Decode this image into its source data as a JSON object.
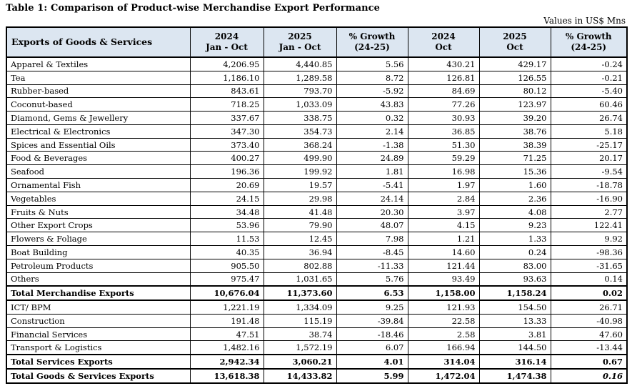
{
  "title": "Table 1: Comparison of Product-wise Merchandise Export Performance",
  "units_note": "Values in US$ Mns",
  "colors": {
    "header_bg": "#dce6f1",
    "border": "#000000",
    "background": "#ffffff"
  },
  "table": {
    "header": {
      "col0": "Exports of Goods & Services",
      "cols": [
        {
          "line1": "2024",
          "line2": "Jan - Oct"
        },
        {
          "line1": "2025",
          "line2": "Jan - Oct"
        },
        {
          "line1": "% Growth",
          "line2": "(24-25)"
        },
        {
          "line1": "2024",
          "line2": "Oct"
        },
        {
          "line1": "2025",
          "line2": "Oct"
        },
        {
          "line1": "% Growth",
          "line2": "(24-25)"
        }
      ]
    },
    "rows": [
      {
        "label": "Apparel & Textiles",
        "values": [
          "4,206.95",
          "4,440.85",
          "5.56",
          "430.21",
          "429.17",
          "-0.24"
        ],
        "bold": false
      },
      {
        "label": "Tea",
        "values": [
          "1,186.10",
          "1,289.58",
          "8.72",
          "126.81",
          "126.55",
          "-0.21"
        ],
        "bold": false
      },
      {
        "label": "Rubber-based",
        "values": [
          "843.61",
          "793.70",
          "-5.92",
          "84.69",
          "80.12",
          "-5.40"
        ],
        "bold": false
      },
      {
        "label": "Coconut-based",
        "values": [
          "718.25",
          "1,033.09",
          "43.83",
          "77.26",
          "123.97",
          "60.46"
        ],
        "bold": false
      },
      {
        "label": "Diamond, Gems & Jewellery",
        "values": [
          "337.67",
          "338.75",
          "0.32",
          "30.93",
          "39.20",
          "26.74"
        ],
        "bold": false
      },
      {
        "label": "Electrical & Electronics",
        "values": [
          "347.30",
          "354.73",
          "2.14",
          "36.85",
          "38.76",
          "5.18"
        ],
        "bold": false
      },
      {
        "label": "Spices and Essential Oils",
        "values": [
          "373.40",
          "368.24",
          "-1.38",
          "51.30",
          "38.39",
          "-25.17"
        ],
        "bold": false
      },
      {
        "label": "Food & Beverages",
        "values": [
          "400.27",
          "499.90",
          "24.89",
          "59.29",
          "71.25",
          "20.17"
        ],
        "bold": false
      },
      {
        "label": "Seafood",
        "values": [
          "196.36",
          "199.92",
          "1.81",
          "16.98",
          "15.36",
          "-9.54"
        ],
        "bold": false
      },
      {
        "label": "Ornamental Fish",
        "values": [
          "20.69",
          "19.57",
          "-5.41",
          "1.97",
          "1.60",
          "-18.78"
        ],
        "bold": false
      },
      {
        "label": "Vegetables",
        "values": [
          "24.15",
          "29.98",
          "24.14",
          "2.84",
          "2.36",
          "-16.90"
        ],
        "bold": false
      },
      {
        "label": "Fruits & Nuts",
        "values": [
          "34.48",
          "41.48",
          "20.30",
          "3.97",
          "4.08",
          "2.77"
        ],
        "bold": false
      },
      {
        "label": "Other Export Crops",
        "values": [
          "53.96",
          "79.90",
          "48.07",
          "4.15",
          "9.23",
          "122.41"
        ],
        "bold": false
      },
      {
        "label": "Flowers & Foliage",
        "values": [
          "11.53",
          "12.45",
          "7.98",
          "1.21",
          "1.33",
          "9.92"
        ],
        "bold": false
      },
      {
        "label": "Boat Building",
        "values": [
          "40.35",
          "36.94",
          "-8.45",
          "14.60",
          "0.24",
          "-98.36"
        ],
        "bold": false
      },
      {
        "label": "Petroleum Products",
        "values": [
          "905.50",
          "802.88",
          "-11.33",
          "121.44",
          "83.00",
          "-31.65"
        ],
        "bold": false
      },
      {
        "label": "Others",
        "values": [
          "975.47",
          "1,031.65",
          "5.76",
          "93.49",
          "93.63",
          "0.14"
        ],
        "bold": false
      },
      {
        "label": "Total Merchandise Exports",
        "values": [
          "10,676.04",
          "11,373.60",
          "6.53",
          "1,158.00",
          "1,158.24",
          "0.02"
        ],
        "bold": true
      },
      {
        "label": "ICT/ BPM",
        "values": [
          "1,221.19",
          "1,334.09",
          "9.25",
          "121.93",
          "154.50",
          "26.71"
        ],
        "bold": false
      },
      {
        "label": "Construction",
        "values": [
          "191.48",
          "115.19",
          "-39.84",
          "22.58",
          "13.33",
          "-40.98"
        ],
        "bold": false
      },
      {
        "label": "Financial Services",
        "values": [
          "47.51",
          "38.74",
          "-18.46",
          "2.58",
          "3.81",
          "47.60"
        ],
        "bold": false
      },
      {
        "label": "Transport & Logistics",
        "values": [
          "1,482.16",
          "1,572.19",
          "6.07",
          "166.94",
          "144.50",
          "-13.44"
        ],
        "bold": false
      },
      {
        "label": "Total Services Exports",
        "values": [
          "2,942.34",
          "3,060.21",
          "4.01",
          "314.04",
          "316.14",
          "0.67"
        ],
        "bold": true
      },
      {
        "label": "Total Goods & Services Exports",
        "values": [
          "13,618.38",
          "14,433.82",
          "5.99",
          "1,472.04",
          "1,474.38",
          "0.16"
        ],
        "bold": true,
        "italic_last": true
      }
    ]
  }
}
